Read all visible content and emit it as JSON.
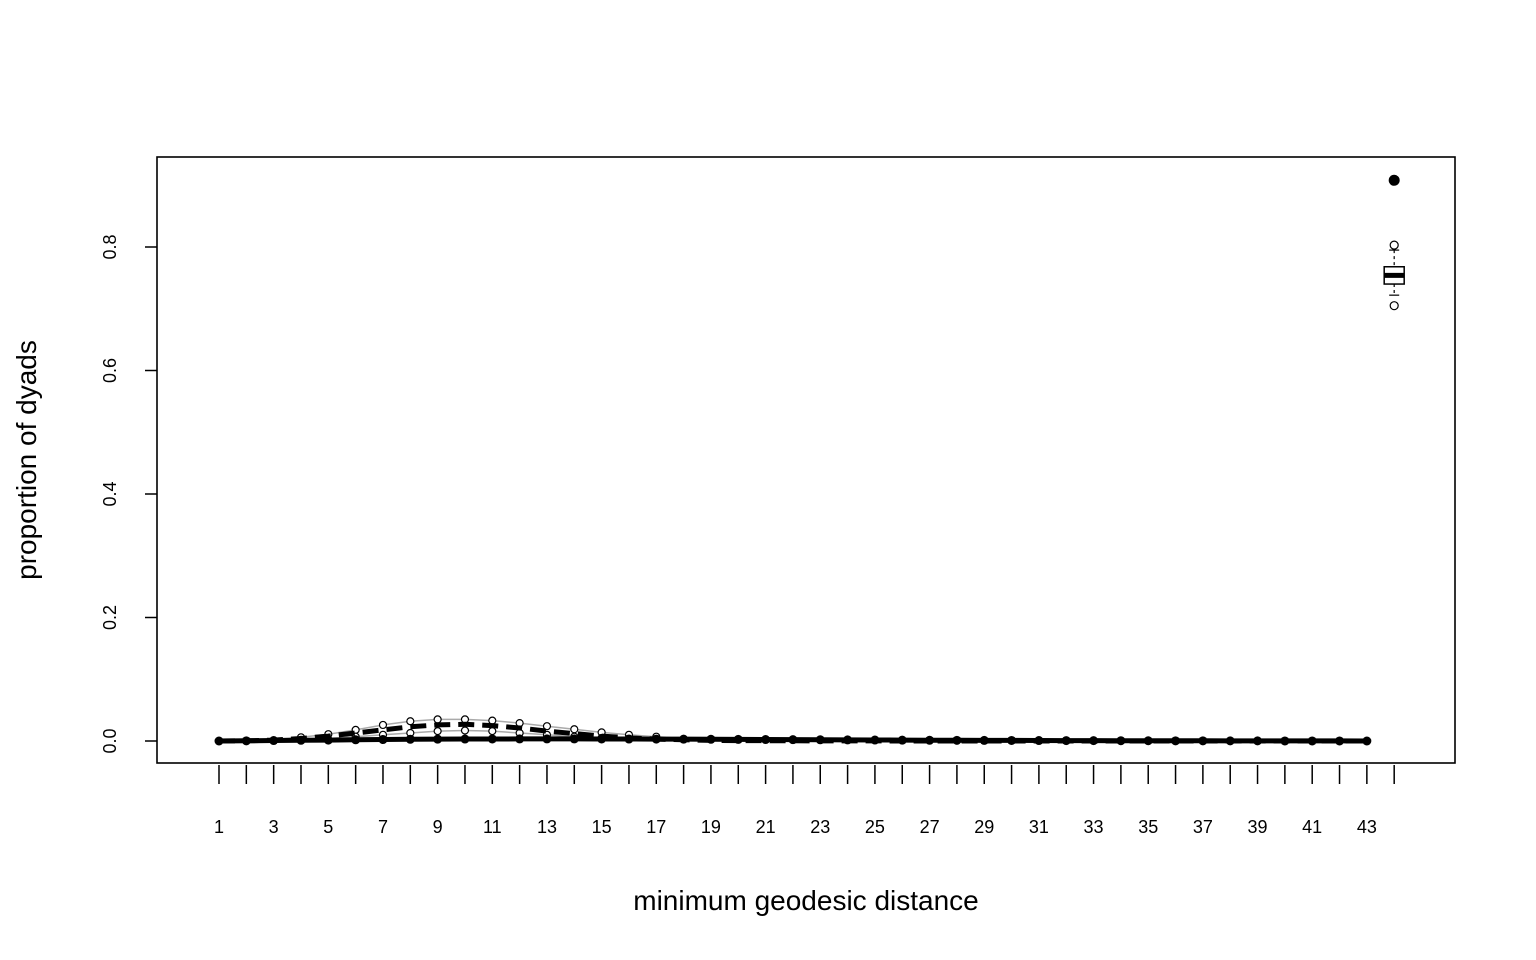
{
  "chart_data": {
    "type": "line",
    "title": "",
    "xlabel": "minimum geodesic distance",
    "ylabel": "proportion of dyads",
    "xlim": [
      0,
      45
    ],
    "ylim": [
      0,
      0.91
    ],
    "x_categories": [
      1,
      2,
      3,
      4,
      5,
      6,
      7,
      8,
      9,
      10,
      11,
      12,
      13,
      14,
      15,
      16,
      17,
      18,
      19,
      20,
      21,
      22,
      23,
      24,
      25,
      26,
      27,
      28,
      29,
      30,
      31,
      32,
      33,
      34,
      35,
      36,
      37,
      38,
      39,
      40,
      41,
      42,
      43,
      44
    ],
    "x_tick_labels": [
      "1",
      "3",
      "5",
      "7",
      "9",
      "11",
      "13",
      "15",
      "17",
      "19",
      "21",
      "23",
      "25",
      "27",
      "29",
      "31",
      "33",
      "35",
      "37",
      "39",
      "41",
      "43"
    ],
    "y_ticks": [
      0.0,
      0.2,
      0.4,
      0.6,
      0.8
    ],
    "y_tick_labels": [
      "0.0",
      "0.2",
      "0.4",
      "0.6",
      "0.8"
    ],
    "series": [
      {
        "role": "observed",
        "x": [
          1,
          2,
          3,
          4,
          5,
          6,
          7,
          8,
          9,
          10,
          11,
          12,
          13,
          14,
          15,
          16,
          17,
          18,
          19,
          20,
          21,
          22,
          23,
          24,
          25,
          26,
          27,
          28,
          29,
          30,
          31,
          32,
          33,
          34,
          35,
          36,
          37,
          38,
          39,
          40,
          41,
          42,
          43
        ],
        "values": [
          0.0,
          0.0003,
          0.0008,
          0.0012,
          0.0015,
          0.002,
          0.0024,
          0.0028,
          0.003,
          0.0032,
          0.0033,
          0.0034,
          0.0034,
          0.0034,
          0.0033,
          0.0032,
          0.0031,
          0.003,
          0.0028,
          0.0026,
          0.0024,
          0.0022,
          0.002,
          0.0018,
          0.0016,
          0.0014,
          0.0012,
          0.0011,
          0.001,
          0.0009,
          0.0008,
          0.0007,
          0.0006,
          0.0005,
          0.0004,
          0.0003,
          0.0003,
          0.0002,
          0.0002,
          0.0001,
          0.0001,
          0.0001,
          0.0
        ]
      },
      {
        "role": "simulated-median",
        "x": [
          1,
          2,
          3,
          4,
          5,
          6,
          7,
          8,
          9,
          10,
          11,
          12,
          13,
          14,
          15,
          16,
          17,
          18,
          19,
          20,
          21,
          22,
          23,
          24,
          25,
          26,
          27,
          28,
          29,
          30,
          31,
          32,
          33,
          34,
          35,
          36,
          37,
          38,
          39,
          40,
          41,
          42,
          43
        ],
        "values": [
          0.0,
          0.0004,
          0.0015,
          0.004,
          0.008,
          0.013,
          0.018,
          0.023,
          0.026,
          0.027,
          0.025,
          0.021,
          0.016,
          0.012,
          0.008,
          0.005,
          0.003,
          0.002,
          0.001,
          0.0007,
          0.0005,
          0.0003,
          0.0002,
          0.0001,
          0.0001,
          0.0,
          0.0,
          0.0,
          0.0,
          0.0,
          0.0,
          0.0,
          0.0,
          0.0,
          0.0,
          0.0,
          0.0,
          0.0,
          0.0,
          0.0,
          0.0,
          0.0,
          0.0
        ]
      },
      {
        "role": "simulated-upper",
        "x": [
          1,
          2,
          3,
          4,
          5,
          6,
          7,
          8,
          9,
          10,
          11,
          12,
          13,
          14,
          15,
          16,
          17,
          18,
          19,
          20,
          21,
          22,
          23,
          24,
          25,
          26,
          27,
          28,
          29,
          30,
          31,
          32,
          33,
          34,
          35,
          36,
          37,
          38,
          39,
          40,
          41,
          42,
          43
        ],
        "values": [
          0.0,
          0.0007,
          0.0025,
          0.006,
          0.011,
          0.018,
          0.026,
          0.032,
          0.035,
          0.035,
          0.033,
          0.029,
          0.024,
          0.019,
          0.014,
          0.01,
          0.007,
          0.004,
          0.003,
          0.002,
          0.0012,
          0.0008,
          0.0005,
          0.0003,
          0.0002,
          0.0001,
          0.0,
          0.0,
          0.0,
          0.0,
          0.0,
          0.0,
          0.0,
          0.0,
          0.0,
          0.0,
          0.0,
          0.0,
          0.0,
          0.0,
          0.0,
          0.0,
          0.0
        ]
      },
      {
        "role": "simulated-lower",
        "x": [
          1,
          2,
          3,
          4,
          5,
          6,
          7,
          8,
          9,
          10,
          11,
          12,
          13,
          14,
          15,
          16,
          17,
          18,
          19,
          20,
          21,
          22,
          23,
          24,
          25,
          26,
          27,
          28,
          29,
          30,
          31,
          32,
          33,
          34,
          35,
          36,
          37,
          38,
          39,
          40,
          41,
          42,
          43
        ],
        "values": [
          0.0,
          0.0002,
          0.0008,
          0.002,
          0.004,
          0.007,
          0.01,
          0.013,
          0.016,
          0.017,
          0.016,
          0.013,
          0.01,
          0.007,
          0.005,
          0.003,
          0.002,
          0.001,
          0.0005,
          0.0003,
          0.0002,
          0.0001,
          0.0001,
          0.0,
          0.0,
          0.0,
          0.0,
          0.0,
          0.0,
          0.0,
          0.0,
          0.0,
          0.0,
          0.0,
          0.0,
          0.0,
          0.0,
          0.0,
          0.0,
          0.0,
          0.0,
          0.0,
          0.0
        ]
      }
    ],
    "inf_boxplot": {
      "x": 44,
      "observed": 0.908,
      "median": 0.754,
      "q1": 0.74,
      "q3": 0.768,
      "whisker_low": 0.722,
      "whisker_high": 0.795,
      "outliers": [
        0.705,
        0.803
      ]
    },
    "grid": false,
    "legend": "none"
  }
}
